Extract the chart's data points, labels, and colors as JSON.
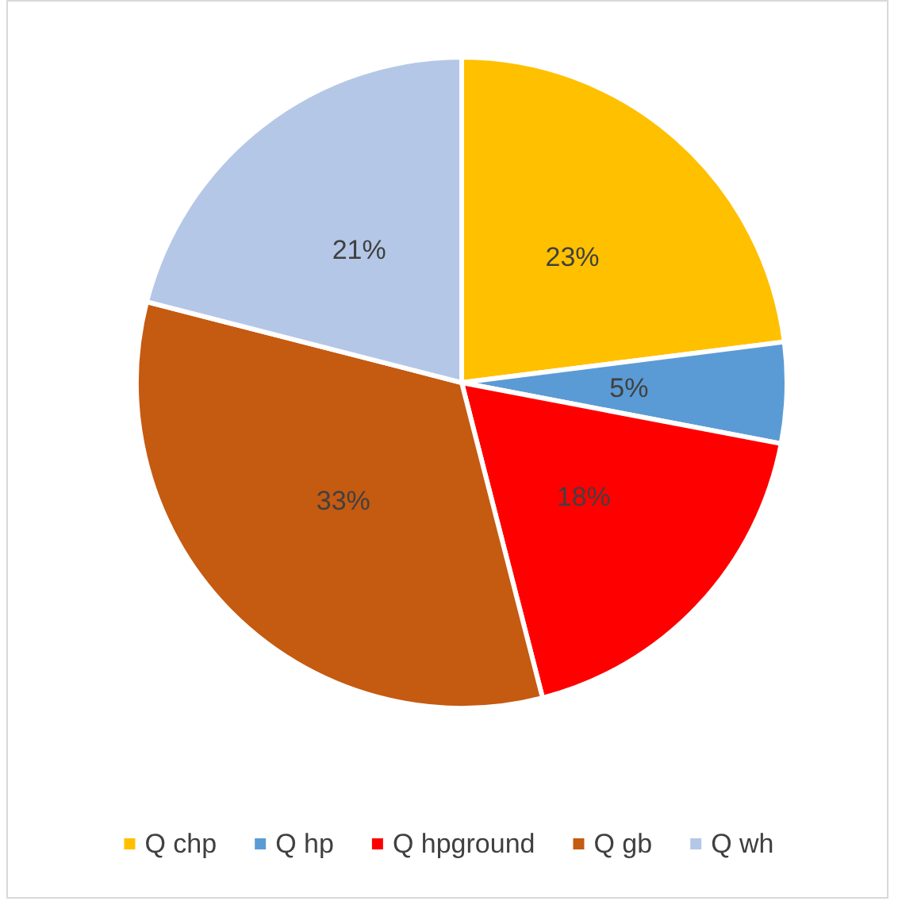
{
  "chart_data": {
    "type": "pie",
    "categories": [
      "Q chp",
      "Q hp",
      "Q hpground",
      "Q gb",
      "Q wh"
    ],
    "values": [
      23,
      5,
      18,
      33,
      21
    ],
    "colors": [
      "#ffc000",
      "#5b9bd5",
      "#ff0000",
      "#c55a11",
      "#b4c7e7"
    ],
    "value_labels": [
      "23%",
      "5%",
      "18%",
      "33%",
      "21%"
    ],
    "legend": "bottom"
  }
}
